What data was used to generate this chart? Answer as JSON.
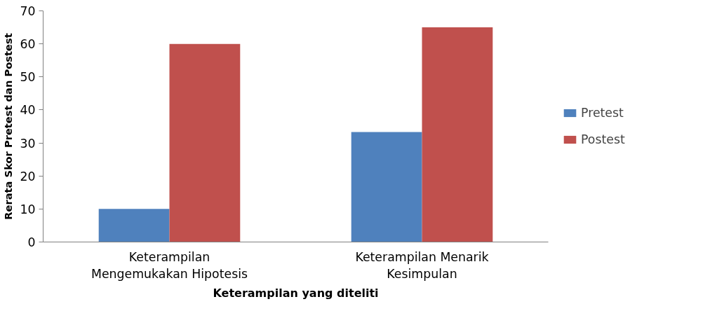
{
  "chart_data": {
    "type": "bar",
    "xlabel": "Keterampilan yang diteliti",
    "ylabel": "Rerata Skor Pretest dan Postest",
    "categories": [
      "Keterampilan\nMengemukakan Hipotesis",
      "Keterampilan Menarik\nKesimpulan"
    ],
    "series": [
      {
        "name": "Pretest",
        "color": "#4f81bd",
        "values": [
          10,
          33.3
        ]
      },
      {
        "name": "Postest",
        "color": "#c0504d",
        "values": [
          60,
          65
        ]
      }
    ],
    "ylim": [
      0,
      70
    ],
    "yticks": [
      0,
      10,
      20,
      30,
      40,
      50,
      60,
      70
    ],
    "grid": false,
    "legend": "right"
  }
}
